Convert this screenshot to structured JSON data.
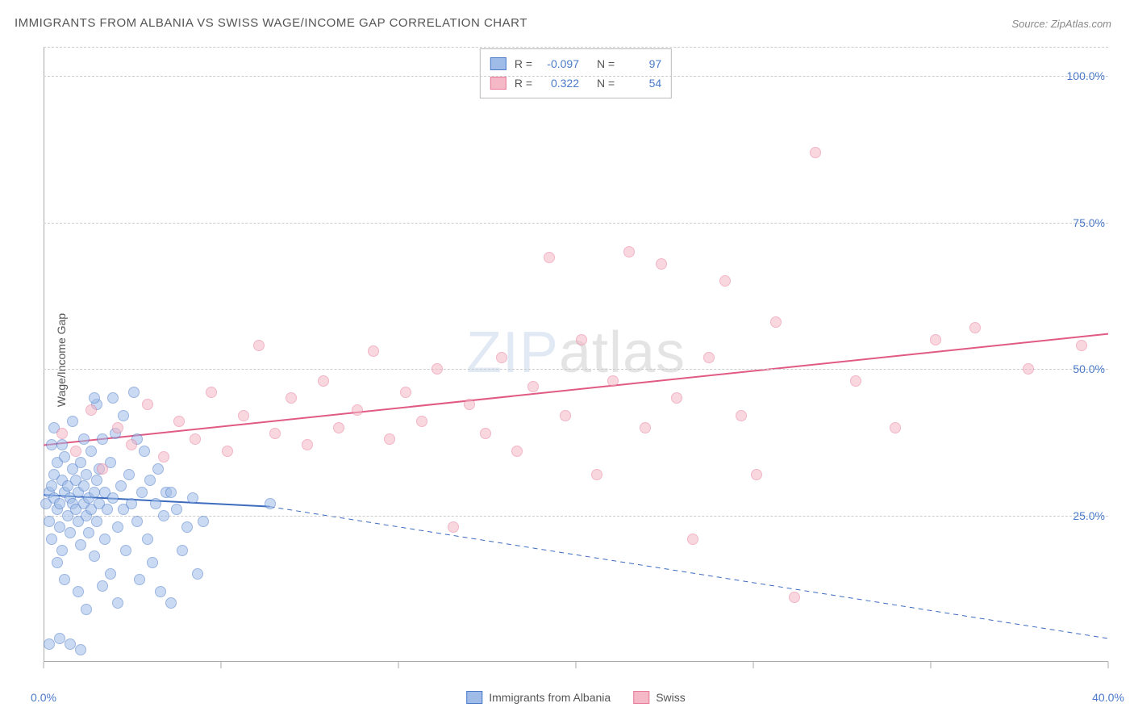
{
  "title": "IMMIGRANTS FROM ALBANIA VS SWISS WAGE/INCOME GAP CORRELATION CHART",
  "source": "Source: ZipAtlas.com",
  "yaxis_label": "Wage/Income Gap",
  "watermark_a": "ZIP",
  "watermark_b": "atlas",
  "chart": {
    "type": "scatter",
    "xlim": [
      0,
      40
    ],
    "ylim": [
      0,
      105
    ],
    "yticks": [
      25,
      50,
      75,
      100
    ],
    "ytick_labels": [
      "25.0%",
      "50.0%",
      "75.0%",
      "100.0%"
    ],
    "xticks": [
      0,
      13.33,
      26.67,
      40
    ],
    "xtick_labels": [
      "0.0%",
      "",
      "",
      "40.0%"
    ],
    "xtick_marks": [
      0,
      6.67,
      13.33,
      20,
      26.67,
      33.33,
      40
    ],
    "grid_color": "#cccccc",
    "axis_color": "#aaaaaa",
    "background": "#ffffff",
    "marker_radius": 7,
    "marker_opacity": 0.55,
    "series": [
      {
        "name": "Immigrants from Albania",
        "fill": "#9fbce8",
        "stroke": "#4a7ac8",
        "R": "-0.097",
        "N": "97",
        "points": [
          [
            0.1,
            27
          ],
          [
            0.2,
            29
          ],
          [
            0.2,
            24
          ],
          [
            0.3,
            30
          ],
          [
            0.3,
            21
          ],
          [
            0.4,
            28
          ],
          [
            0.4,
            32
          ],
          [
            0.5,
            26
          ],
          [
            0.5,
            34
          ],
          [
            0.6,
            27
          ],
          [
            0.6,
            23
          ],
          [
            0.7,
            31
          ],
          [
            0.7,
            19
          ],
          [
            0.8,
            29
          ],
          [
            0.8,
            35
          ],
          [
            0.9,
            25
          ],
          [
            0.9,
            30
          ],
          [
            1.0,
            28
          ],
          [
            1.0,
            22
          ],
          [
            1.1,
            33
          ],
          [
            1.1,
            27
          ],
          [
            1.2,
            26
          ],
          [
            1.2,
            31
          ],
          [
            1.3,
            24
          ],
          [
            1.3,
            29
          ],
          [
            1.4,
            20
          ],
          [
            1.4,
            34
          ],
          [
            1.5,
            27
          ],
          [
            1.5,
            30
          ],
          [
            1.6,
            25
          ],
          [
            1.6,
            32
          ],
          [
            1.7,
            28
          ],
          [
            1.7,
            22
          ],
          [
            1.8,
            36
          ],
          [
            1.8,
            26
          ],
          [
            1.9,
            29
          ],
          [
            1.9,
            18
          ],
          [
            2.0,
            31
          ],
          [
            2.0,
            24
          ],
          [
            2.1,
            27
          ],
          [
            2.1,
            33
          ],
          [
            2.2,
            38
          ],
          [
            2.3,
            21
          ],
          [
            2.3,
            29
          ],
          [
            2.4,
            26
          ],
          [
            2.5,
            34
          ],
          [
            2.5,
            15
          ],
          [
            2.6,
            28
          ],
          [
            2.7,
            39
          ],
          [
            2.8,
            23
          ],
          [
            2.9,
            30
          ],
          [
            3.0,
            26
          ],
          [
            3.0,
            42
          ],
          [
            3.1,
            19
          ],
          [
            3.2,
            32
          ],
          [
            3.3,
            27
          ],
          [
            3.4,
            46
          ],
          [
            3.5,
            24
          ],
          [
            3.6,
            14
          ],
          [
            3.7,
            29
          ],
          [
            3.8,
            36
          ],
          [
            3.9,
            21
          ],
          [
            4.0,
            31
          ],
          [
            4.1,
            17
          ],
          [
            4.2,
            27
          ],
          [
            4.3,
            33
          ],
          [
            4.4,
            12
          ],
          [
            4.5,
            25
          ],
          [
            4.6,
            29
          ],
          [
            4.8,
            10
          ],
          [
            5.0,
            26
          ],
          [
            5.2,
            19
          ],
          [
            5.4,
            23
          ],
          [
            5.6,
            28
          ],
          [
            5.8,
            15
          ],
          [
            6.0,
            24
          ],
          [
            0.3,
            37
          ],
          [
            0.4,
            40
          ],
          [
            0.7,
            37
          ],
          [
            1.1,
            41
          ],
          [
            1.5,
            38
          ],
          [
            2.0,
            44
          ],
          [
            1.3,
            12
          ],
          [
            1.6,
            9
          ],
          [
            2.2,
            13
          ],
          [
            2.8,
            10
          ],
          [
            0.5,
            17
          ],
          [
            0.8,
            14
          ],
          [
            0.2,
            3
          ],
          [
            0.6,
            4
          ],
          [
            1.0,
            3
          ],
          [
            1.4,
            2
          ],
          [
            1.9,
            45
          ],
          [
            2.6,
            45
          ],
          [
            3.5,
            38
          ],
          [
            4.8,
            29
          ],
          [
            8.5,
            27
          ]
        ],
        "trend": {
          "x1": 0,
          "y1": 28.5,
          "x2": 8.5,
          "y2": 26.5,
          "dash_from_x": 8.5,
          "dash_to_x": 40,
          "dash_y2": 4,
          "color": "#3d6cbf",
          "width": 2
        }
      },
      {
        "name": "Swiss",
        "fill": "#f4b8c6",
        "stroke": "#e87a9a",
        "R": "0.322",
        "N": "54",
        "points": [
          [
            0.7,
            39
          ],
          [
            1.2,
            36
          ],
          [
            1.8,
            43
          ],
          [
            2.2,
            33
          ],
          [
            2.8,
            40
          ],
          [
            3.3,
            37
          ],
          [
            3.9,
            44
          ],
          [
            4.5,
            35
          ],
          [
            5.1,
            41
          ],
          [
            5.7,
            38
          ],
          [
            6.3,
            46
          ],
          [
            6.9,
            36
          ],
          [
            7.5,
            42
          ],
          [
            8.1,
            54
          ],
          [
            8.7,
            39
          ],
          [
            9.3,
            45
          ],
          [
            9.9,
            37
          ],
          [
            10.5,
            48
          ],
          [
            11.1,
            40
          ],
          [
            11.8,
            43
          ],
          [
            12.4,
            53
          ],
          [
            13.0,
            38
          ],
          [
            13.6,
            46
          ],
          [
            14.2,
            41
          ],
          [
            14.8,
            50
          ],
          [
            15.4,
            23
          ],
          [
            16.0,
            44
          ],
          [
            16.6,
            39
          ],
          [
            17.2,
            52
          ],
          [
            17.8,
            36
          ],
          [
            18.4,
            47
          ],
          [
            19.0,
            69
          ],
          [
            19.6,
            42
          ],
          [
            20.2,
            55
          ],
          [
            20.8,
            32
          ],
          [
            21.4,
            48
          ],
          [
            22.0,
            70
          ],
          [
            22.6,
            40
          ],
          [
            23.2,
            68
          ],
          [
            23.8,
            45
          ],
          [
            24.4,
            21
          ],
          [
            25.0,
            52
          ],
          [
            25.6,
            65
          ],
          [
            26.2,
            42
          ],
          [
            26.8,
            32
          ],
          [
            27.5,
            58
          ],
          [
            28.2,
            11
          ],
          [
            29.0,
            87
          ],
          [
            30.5,
            48
          ],
          [
            32.0,
            40
          ],
          [
            33.5,
            55
          ],
          [
            35.0,
            57
          ],
          [
            37.0,
            50
          ],
          [
            39.0,
            54
          ]
        ],
        "trend": {
          "x1": 0,
          "y1": 37,
          "x2": 40,
          "y2": 56,
          "color": "#e15a84",
          "width": 2
        }
      }
    ]
  },
  "legend_labels": {
    "R": "R =",
    "N": "N ="
  },
  "bottom_legend": [
    {
      "label": "Immigrants from Albania",
      "fill": "#9fbce8",
      "stroke": "#4a7ac8"
    },
    {
      "label": "Swiss",
      "fill": "#f4b8c6",
      "stroke": "#e87a9a"
    }
  ]
}
